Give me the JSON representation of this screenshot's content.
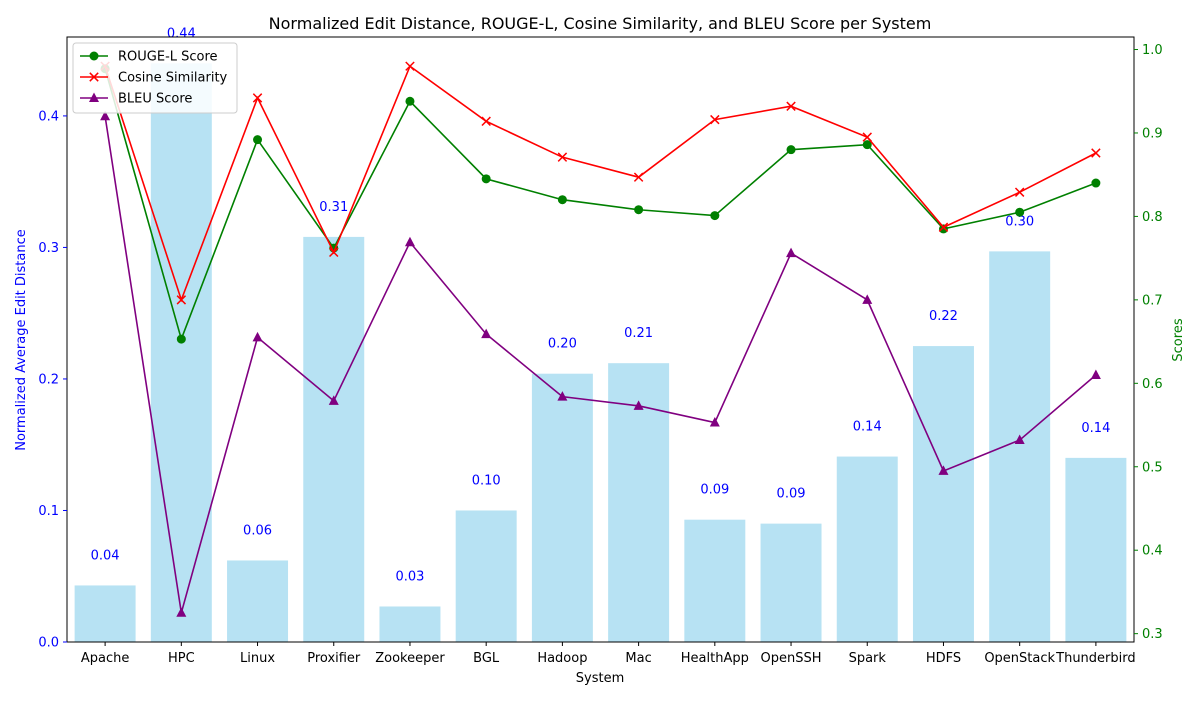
{
  "chart_data": {
    "type": "bar+line",
    "title": "Normalized Edit Distance, ROUGE-L, Cosine Similarity, and BLEU Score per System",
    "xlabel": "System",
    "ylabel_left": "Normalized Average Edit Distance",
    "ylabel_right": "Scores",
    "categories": [
      "Apache",
      "HPC",
      "Linux",
      "Proxifier",
      "Zookeeper",
      "BGL",
      "Hadoop",
      "Mac",
      "HealthApp",
      "OpenSSH",
      "Spark",
      "HDFS",
      "OpenStack",
      "Thunderbird"
    ],
    "bar_series": {
      "name": "Normalized Average Edit Distance",
      "values": [
        0.043,
        0.44,
        0.062,
        0.308,
        0.027,
        0.1,
        0.204,
        0.212,
        0.093,
        0.09,
        0.141,
        0.225,
        0.297,
        0.14
      ],
      "labels": [
        "0.04",
        "0.44",
        "0.06",
        "0.31",
        "0.03",
        "0.10",
        "0.20",
        "0.21",
        "0.09",
        "0.09",
        "0.14",
        "0.22",
        "0.30",
        "0.14"
      ],
      "color": "#87ceeb",
      "label_color": "#0000ff"
    },
    "line_series": [
      {
        "name": "ROUGE-L Score",
        "color": "#008000",
        "marker": "circle",
        "values": [
          0.977,
          0.653,
          0.892,
          0.762,
          0.938,
          0.845,
          0.82,
          0.808,
          0.801,
          0.88,
          0.886,
          0.785,
          0.805,
          0.84
        ]
      },
      {
        "name": "Cosine Similarity",
        "color": "#ff0000",
        "marker": "x",
        "values": [
          0.98,
          0.7,
          0.942,
          0.757,
          0.98,
          0.914,
          0.871,
          0.847,
          0.916,
          0.932,
          0.895,
          0.787,
          0.829,
          0.876
        ]
      },
      {
        "name": "BLEU Score",
        "color": "#800080",
        "marker": "triangle",
        "values": [
          0.92,
          0.325,
          0.655,
          0.579,
          0.769,
          0.659,
          0.584,
          0.573,
          0.553,
          0.756,
          0.7,
          0.495,
          0.532,
          0.61
        ]
      }
    ],
    "ylim_left": [
      0,
      0.46
    ],
    "yticks_left": [
      0.0,
      0.1,
      0.2,
      0.3,
      0.4
    ],
    "ytick_labels_left": [
      "0.0",
      "0.1",
      "0.2",
      "0.3",
      "0.4"
    ],
    "ylim_right": [
      0.29,
      1.015
    ],
    "yticks_right": [
      0.3,
      0.4,
      0.5,
      0.6,
      0.7,
      0.8,
      0.9,
      1.0
    ],
    "ytick_labels_right": [
      "0.3",
      "0.4",
      "0.5",
      "0.6",
      "0.7",
      "0.8",
      "0.9",
      "1.0"
    ],
    "left_axis_color": "#0000ff",
    "right_axis_color": "#008000",
    "legend_position": "top-left",
    "grid": false
  }
}
